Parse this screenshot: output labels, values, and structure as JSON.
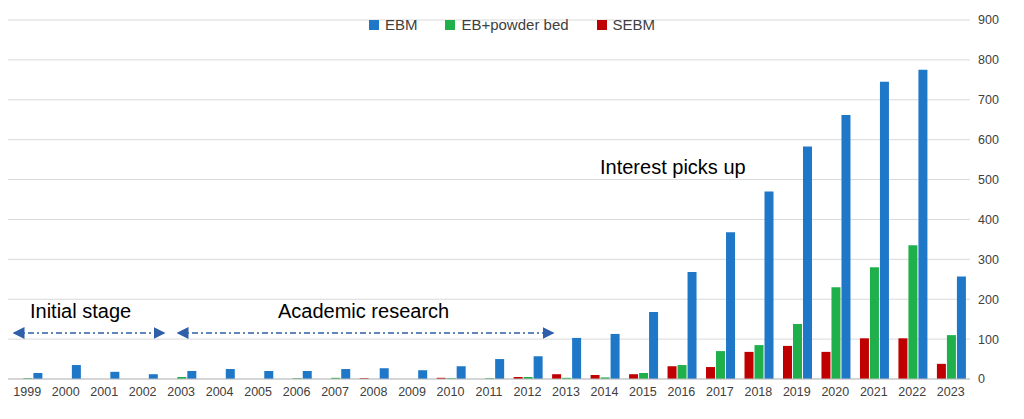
{
  "chart_data": {
    "type": "bar",
    "categories": [
      "1999",
      "2000",
      "2001",
      "2002",
      "2003",
      "2004",
      "2005",
      "2006",
      "2007",
      "2008",
      "2009",
      "2010",
      "2011",
      "2012",
      "2013",
      "2014",
      "2015",
      "2016",
      "2017",
      "2018",
      "2019",
      "2020",
      "2021",
      "2022",
      "2023"
    ],
    "series": [
      {
        "name": "EBM",
        "color": "#1f77c8",
        "values": [
          15,
          35,
          18,
          12,
          20,
          25,
          20,
          20,
          25,
          27,
          22,
          32,
          50,
          57,
          103,
          113,
          168,
          268,
          368,
          470,
          583,
          662,
          745,
          775,
          257
        ]
      },
      {
        "name": "EB+powder bed",
        "color": "#1fb04c",
        "values": [
          2,
          0,
          0,
          0,
          5,
          0,
          0,
          2,
          3,
          0,
          0,
          2,
          2,
          5,
          3,
          4,
          15,
          35,
          70,
          85,
          138,
          230,
          280,
          335,
          110
        ]
      },
      {
        "name": "SEBM",
        "color": "#c00000",
        "values": [
          0,
          0,
          0,
          0,
          0,
          0,
          0,
          0,
          0,
          2,
          0,
          3,
          0,
          5,
          12,
          10,
          12,
          32,
          30,
          68,
          83,
          68,
          102,
          102,
          38
        ]
      }
    ],
    "ylim": [
      0,
      900
    ],
    "yticks": [
      0,
      100,
      200,
      300,
      400,
      500,
      600,
      700,
      800,
      900
    ],
    "grid": true,
    "legend": "top",
    "annotations": [
      "Initial stage",
      "Academic research",
      "Interest picks up"
    ]
  }
}
